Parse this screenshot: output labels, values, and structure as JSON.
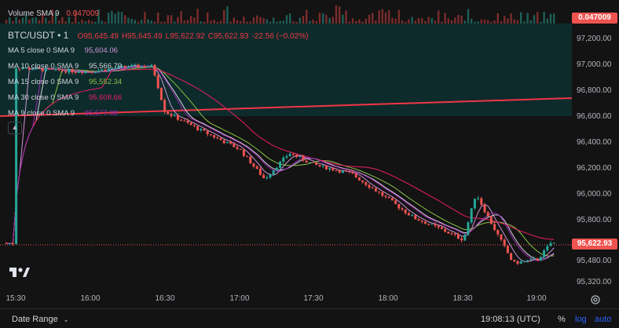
{
  "volume": {
    "label": "Volume SMA 9",
    "value": "0.047009",
    "tag": "0.047009"
  },
  "symbol": {
    "name": "BTC/USDT • 1",
    "open": "O95,645.49",
    "high": "H95,645.49",
    "low": "L95,622.92",
    "close": "C95,622.93",
    "change": "-22.56 (−0.02%)"
  },
  "indicators": [
    {
      "label": "MA 5 close 0 SMA 9",
      "value": "95,604.06",
      "color": "#ce93d8"
    },
    {
      "label": "MA 10 close 0 SMA 9",
      "value": "95,566.79",
      "color": "#d1d4dc"
    },
    {
      "label": "MA 15 close 0 SMA 9",
      "value": "95,552.34",
      "color": "#8bc34a"
    },
    {
      "label": "MA 30 close 0 SMA 9",
      "value": "95,608.66",
      "color": "#e91e63"
    },
    {
      "label": "MA 9 close 0 SMA 9",
      "value": "95,577.08",
      "color": "#9c27b0"
    }
  ],
  "collapse_icon": "chevron-up-icon",
  "price_axis": {
    "ticks": [
      "97,200.00",
      "97,000.00",
      "96,800.00",
      "96,600.00",
      "96,400.00",
      "96,200.00",
      "96,000.00",
      "95,800.00",
      "95,480.00",
      "95,320.00"
    ],
    "current_price": "95,622.93"
  },
  "time_axis": {
    "ticks": [
      "15:30",
      "16:00",
      "16:30",
      "17:00",
      "17:30",
      "18:00",
      "18:30",
      "19:00"
    ]
  },
  "bottom_bar": {
    "date_range": "Date Range",
    "clock": "19:08:13 (UTC)",
    "percent": "%",
    "log": "log",
    "auto": "auto"
  },
  "colors": {
    "up": "#26a69a",
    "down": "#ef5350",
    "trendline": "#f23645",
    "accent": "#2962ff",
    "zone": "#0d2b2b"
  },
  "chart_data": {
    "type": "line",
    "series": [
      {
        "name": "BTC/USDT",
        "x": [
          "15:30",
          "15:45",
          "16:00",
          "16:15",
          "16:25",
          "16:30",
          "16:45",
          "17:00",
          "17:10",
          "17:20",
          "17:30",
          "17:45",
          "18:00",
          "18:10",
          "18:20",
          "18:30",
          "18:35",
          "18:40",
          "18:50",
          "19:00",
          "19:05"
        ],
        "values": [
          96980,
          96960,
          96950,
          96990,
          96990,
          96640,
          96490,
          96350,
          96120,
          96320,
          96230,
          96160,
          95960,
          95820,
          95740,
          95650,
          96010,
          95820,
          95470,
          95500,
          95623
        ]
      }
    ],
    "ylim": [
      95320,
      97200
    ]
  }
}
